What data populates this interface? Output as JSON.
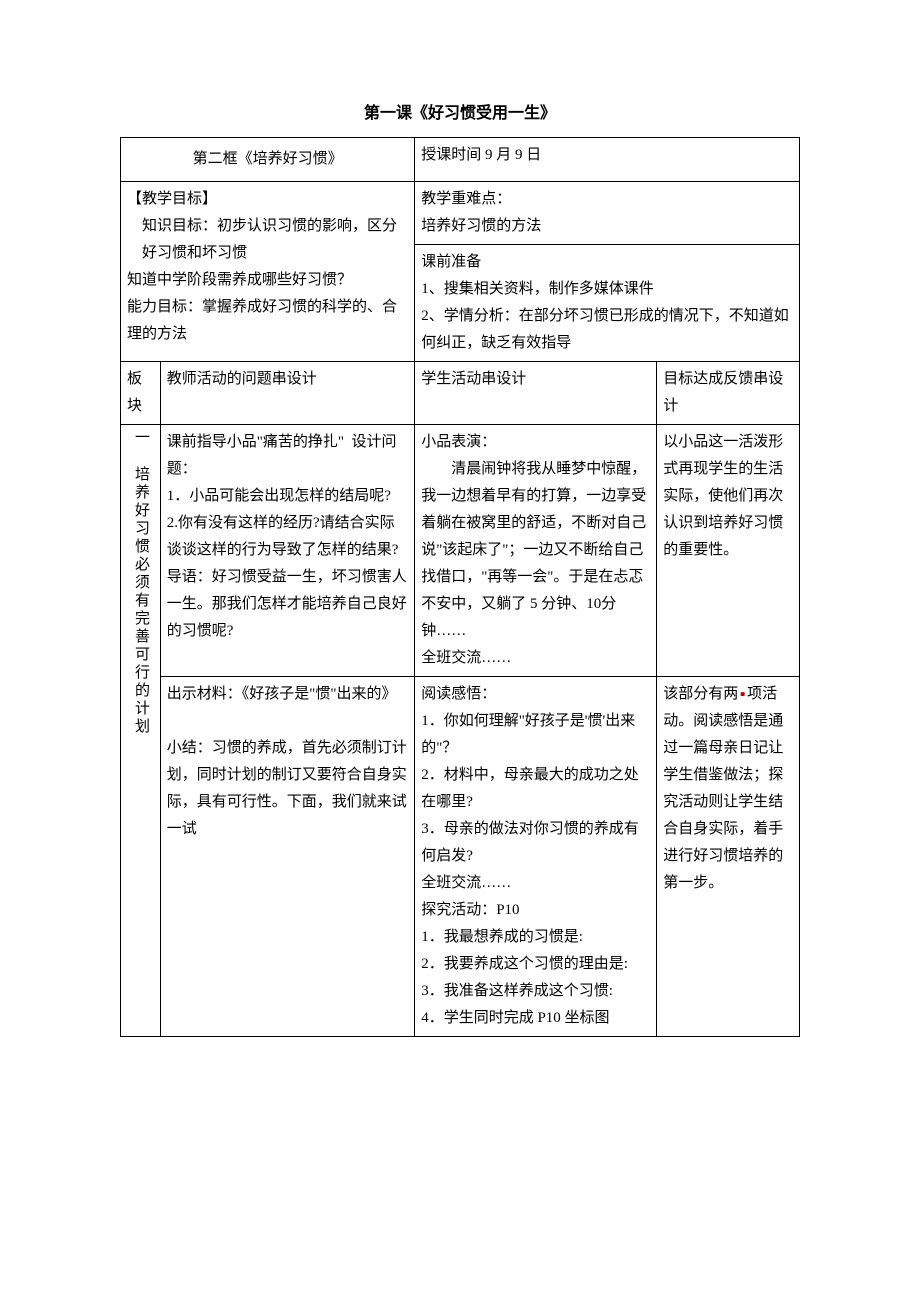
{
  "title": "第一课《好习惯受用一生》",
  "header": {
    "left": "第二框《培养好习惯》",
    "right": "授课时间 9 月 9 日"
  },
  "objectives": {
    "heading": "【教学目标】",
    "line1": "知识目标：初步认识习惯的影响，区分好习惯和坏习惯",
    "line2": "知道中学阶段需养成哪些好习惯？",
    "line3": "能力目标：掌握养成好习惯的科学的、合理的方法"
  },
  "keypoints": {
    "heading": "教学重难点：",
    "content": "培养好习惯的方法"
  },
  "prep": {
    "heading": "课前准备",
    "line1": "1、搜集相关资料，制作多媒体课件",
    "line2": "2、学情分析：在部分坏习惯已形成的情况下，不知道如何纠正，缺乏有效指导"
  },
  "columns": {
    "c1": "板块",
    "c2": "教师活动的问题串设计",
    "c3": "学生活动串设计",
    "c4": "目标达成反馈串设计"
  },
  "section1": {
    "label": "一 培养好习惯必须有完善可行的计划",
    "row1": {
      "teacher": "课前指导小品\"痛苦的挣扎\"  设计问题：\n1．小品可能会出现怎样的结局呢?\n2.你有没有这样的经历?请结合实际谈谈这样的行为导致了怎样的结果?\n导语：好习惯受益一生，坏习惯害人一生。那我们怎样才能培养自己良好的习惯呢?",
      "student_heading": "小品表演：",
      "student_body": "清晨闹钟将我从睡梦中惊醒，我一边想着早有的打算，一边享受着躺在被窝里的舒适，不断对自己说\"该起床了\"；一边又不断给自己找借口，\"再等一会\"。于是在忐忑不安中，又躺了 5 分钟、10分钟……",
      "student_end": "全班交流……",
      "feedback": "以小品这一活泼形式再现学生的生活实际，使他们再次认识到培养好习惯的重要性。"
    },
    "row2": {
      "teacher_line1": "出示材料：《好孩子是\"惯\"出来的》",
      "teacher_line2": "小结：习惯的养成，首先必须制订计划，同时计划的制订又要符合自身实际，具有可行性。下面，我们就来试一试",
      "student": "阅读感悟：\n1．你如何理解\"好孩子是'惯'出来的\"？\n2．材料中，母亲最大的成功之处在哪里?\n3．母亲的做法对你习惯的养成有何启发?\n全班交流……\n探究活动：P10\n1．我最想养成的习惯是:\n2．我要养成这个习惯的理由是:\n3．我准备这样养成这个习惯:\n4．学生同时完成 P10 坐标图",
      "feedback_part1": "该部分有两",
      "feedback_part2": "项活动。阅读感悟是通过一篇母亲日记让学生借鉴做法；探究活动则让学生结合自身实际，着手进行好习惯培养的第一步。"
    }
  }
}
